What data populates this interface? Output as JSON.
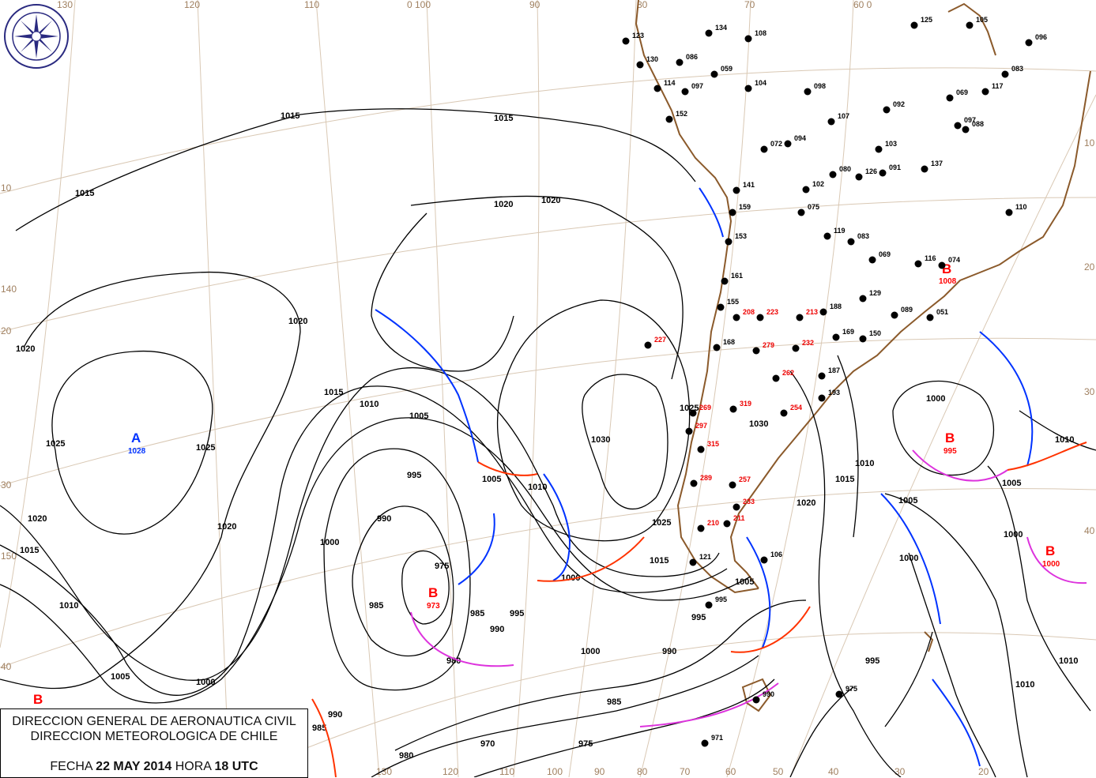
{
  "header": {
    "org_line1": "DIRECCION GENERAL DE AERONAUTICA CIVIL",
    "org_line2": "DIRECCION METEOROLOGICA DE CHILE",
    "date_label": "FECHA",
    "date_value": "22 MAY 2014",
    "time_label": "HORA",
    "time_value": "18 UTC"
  },
  "logo": {
    "text": "DIRECCION METEOROLOGICA CHILE"
  },
  "colors": {
    "isobar": "#000000",
    "cold_front": "#0033ff",
    "warm_front": "#ff3300",
    "occluded_front": "#dd33dd",
    "coastline": "#8b5a2b",
    "graticule": "#d9c8b4",
    "high": "#0033ff",
    "low": "#ff0000"
  },
  "degree_labels": {
    "top": [
      "130",
      "120",
      "110",
      "0 100",
      "90",
      "80",
      "70",
      "60 0"
    ],
    "left": [
      "10",
      "140",
      "20",
      "30",
      "150",
      "40"
    ],
    "right": [
      "10",
      "20",
      "30",
      "40"
    ],
    "bottom": [
      "130",
      "120",
      "110",
      "100",
      "90",
      "80",
      "70",
      "60",
      "50",
      "40",
      "30",
      "20"
    ]
  },
  "pressure_centers": [
    {
      "type": "A",
      "value": "1028"
    },
    {
      "type": "B",
      "value": "973"
    },
    {
      "type": "B",
      "value": "995"
    },
    {
      "type": "B",
      "value": "1000"
    },
    {
      "type": "B",
      "value": "1008"
    },
    {
      "type": "B",
      "value": ""
    }
  ],
  "isobar_labels": [
    "1015",
    "1015",
    "1015",
    "1020",
    "1020",
    "1020",
    "1020",
    "1025",
    "1025",
    "1020",
    "1015",
    "1010",
    "1005",
    "995",
    "1000",
    "990",
    "985",
    "975",
    "980",
    "1000",
    "1005",
    "1010",
    "1015",
    "1020",
    "1025",
    "1030",
    "1010",
    "1005",
    "1000",
    "995",
    "990",
    "985",
    "980",
    "975",
    "970",
    "990",
    "985",
    "1015",
    "1025",
    "1020",
    "1015",
    "1010",
    "1005",
    "1000",
    "995",
    "990",
    "985",
    "1000",
    "1005",
    "1010",
    "1000",
    "995",
    "1000",
    "1005",
    "1010",
    "1010",
    "1030"
  ],
  "stations": [
    "134",
    "108",
    "123",
    "130",
    "086",
    "059",
    "114",
    "097",
    "104",
    "098",
    "092",
    "152",
    "094",
    "072",
    "103",
    "107",
    "080",
    "126",
    "091",
    "137",
    "102",
    "075",
    "141",
    "159",
    "153",
    "161",
    "155",
    "119",
    "083",
    "069",
    "116",
    "074",
    "110",
    "051",
    "089",
    "150",
    "169",
    "188",
    "129",
    "223",
    "208",
    "213",
    "232",
    "279",
    "168",
    "227",
    "187",
    "193",
    "262",
    "269",
    "319",
    "254",
    "297",
    "315",
    "289",
    "257",
    "233",
    "211",
    "210",
    "121",
    "106",
    "995",
    "975",
    "990",
    "971",
    "125",
    "105",
    "096",
    "083",
    "097",
    "088",
    "117",
    "069"
  ]
}
